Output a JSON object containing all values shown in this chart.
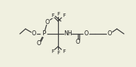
{
  "bg_color": "#f0f0e0",
  "line_color": "#3a3a3a",
  "text_color": "#1a1a1a",
  "lw": 0.9,
  "figsize": [
    1.92,
    0.95
  ],
  "dpi": 100,
  "xlim": [
    0,
    192
  ],
  "ylim": [
    0,
    95
  ]
}
